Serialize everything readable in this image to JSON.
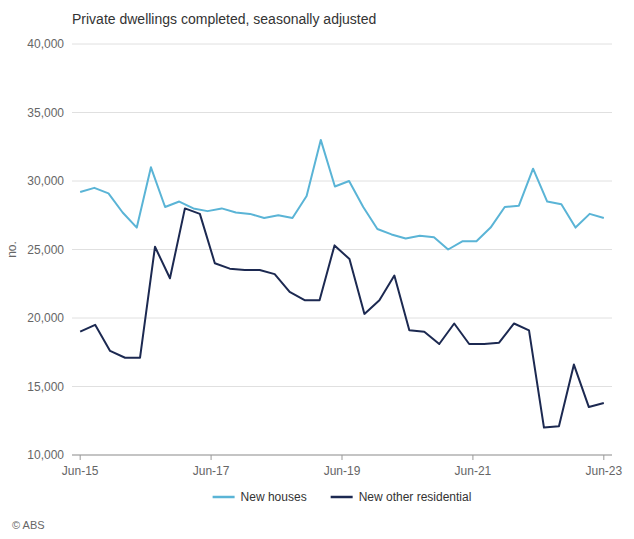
{
  "chart_data": {
    "type": "line",
    "title": "Private dwellings completed, seasonally adjusted",
    "y_label": "no.",
    "source": "© ABS",
    "xlim": [
      -0.5,
      32.5
    ],
    "xticks": [
      {
        "value": 0,
        "label": "Jun-15"
      },
      {
        "value": 8,
        "label": "Jun-17"
      },
      {
        "value": 16,
        "label": "Jun-19"
      },
      {
        "value": 24,
        "label": "Jun-21"
      },
      {
        "value": 32,
        "label": "Jun-23"
      }
    ],
    "ylim": [
      10000,
      40000
    ],
    "yticks": [
      {
        "value": 10000,
        "label": "10,000"
      },
      {
        "value": 15000,
        "label": "15,000"
      },
      {
        "value": 20000,
        "label": "20,000"
      },
      {
        "value": 25000,
        "label": "25,000"
      },
      {
        "value": 30000,
        "label": "30,000"
      },
      {
        "value": 35000,
        "label": "35,000"
      },
      {
        "value": 40000,
        "label": "40,000"
      }
    ],
    "grid": true,
    "legend": "bottom",
    "series": [
      {
        "name": "New houses",
        "color": "#5ab4d6",
        "x": [
          0,
          0.8648648648648649,
          1.7297297297297298,
          2.5945945945945947,
          3.4594594594594597,
          4.324324324324325,
          5.1891891891891895,
          6.054054054054054,
          6.918918918918919,
          7.783783783783784,
          8.64864864864865,
          9.513513513513514,
          10.378378378378379,
          11.243243243243244,
          12.108108108108109,
          12.972972972972974,
          13.837837837837839,
          14.702702702702704,
          15.567567567567568,
          16.43243243243243,
          17.2972972972973,
          18.16216216216216,
          19.027027027027028,
          19.89189189189189,
          20.756756756756758,
          21.62162162162162,
          22.486486486486488,
          23.35135135135135,
          24.216216216216218,
          25.08108108108108,
          25.945945945945947,
          26.81081081081081,
          27.675675675675677,
          28.54054054054054,
          29.405405405405407,
          30.27027027027027,
          31.135135135135137,
          32
        ],
        "values": [
          29200,
          29500,
          29100,
          27700,
          26600,
          31000,
          28100,
          28500,
          28000,
          27800,
          28000,
          27700,
          27600,
          27300,
          27500,
          27300,
          28900,
          33000,
          29600,
          30000,
          28100,
          26500,
          26100,
          25800,
          26000,
          25900,
          25000,
          25600,
          25600,
          26600,
          28100,
          28200,
          30900,
          28500,
          28300,
          26600,
          27600,
          27300
        ]
      },
      {
        "name": "New other residential",
        "color": "#1c2951",
        "x": [
          0,
          0.9142857142857143,
          1.8285714285714285,
          2.742857142857143,
          3.657142857142857,
          4.571428571428571,
          5.485714285714286,
          6.4,
          7.314285714285714,
          8.228571428571428,
          9.142857142857142,
          10.057142857142857,
          10.971428571428572,
          11.885714285714286,
          12.8,
          13.714285714285714,
          14.628571428571428,
          15.542857142857143,
          16.457142857142856,
          17.37142857142857,
          18.285714285714285,
          19.2,
          20.114285714285714,
          21.02857142857143,
          21.942857142857143,
          22.857142857142858,
          23.771428571428572,
          24.685714285714283,
          25.6,
          26.514285714285712,
          27.428571428571427,
          28.34285714285714,
          29.257142857142856,
          30.17142857142857,
          31.085714285714285,
          32
        ],
        "values": [
          19000,
          19500,
          17600,
          17100,
          17100,
          25200,
          22900,
          28000,
          27600,
          24000,
          23600,
          23500,
          23500,
          23200,
          21900,
          21300,
          21300,
          25300,
          24300,
          20300,
          21300,
          23100,
          19100,
          19000,
          18100,
          19600,
          18100,
          18100,
          18200,
          19600,
          19100,
          12000,
          12100,
          16600,
          13500,
          13800
        ]
      }
    ]
  }
}
